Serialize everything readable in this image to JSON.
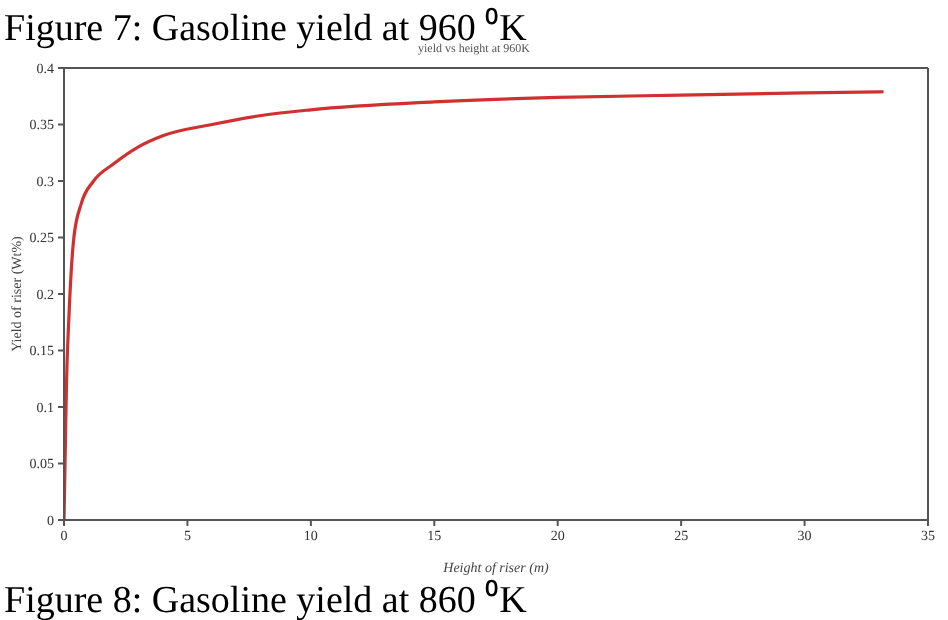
{
  "chart_data": {
    "type": "line",
    "title": "Figure 7: Gasoline yield at 960 ⁰K",
    "subtitle": "yield vs height at 960K",
    "xlabel": "Height of riser (m)",
    "ylabel": "Yield of riser (Wt%)",
    "annotations": [
      "Figure 8: Gasoline yield at 860 ⁰K"
    ],
    "x": [
      0,
      0.05,
      0.1,
      0.2,
      0.4,
      0.7,
      1.2,
      2,
      3,
      4,
      6,
      8,
      10,
      15,
      20,
      25,
      30,
      33.2
    ],
    "series": [
      {
        "color": "#d03030",
        "values": [
          0,
          0.06,
          0.12,
          0.18,
          0.25,
          0.28,
          0.3,
          0.315,
          0.33,
          0.34,
          0.35,
          0.358,
          0.363,
          0.37,
          0.374,
          0.376,
          0.378,
          0.379
        ]
      }
    ],
    "xlim": [
      0,
      35
    ],
    "xticks": [
      0,
      5,
      10,
      15,
      20,
      25,
      30,
      35
    ],
    "ylim": [
      0,
      0.4
    ],
    "yticks": [
      0,
      0.05,
      0.1,
      0.15,
      0.2,
      0.25,
      0.3,
      0.35,
      0.4
    ],
    "grid": false,
    "legend": false,
    "marker": "none",
    "line_style": "solid"
  }
}
